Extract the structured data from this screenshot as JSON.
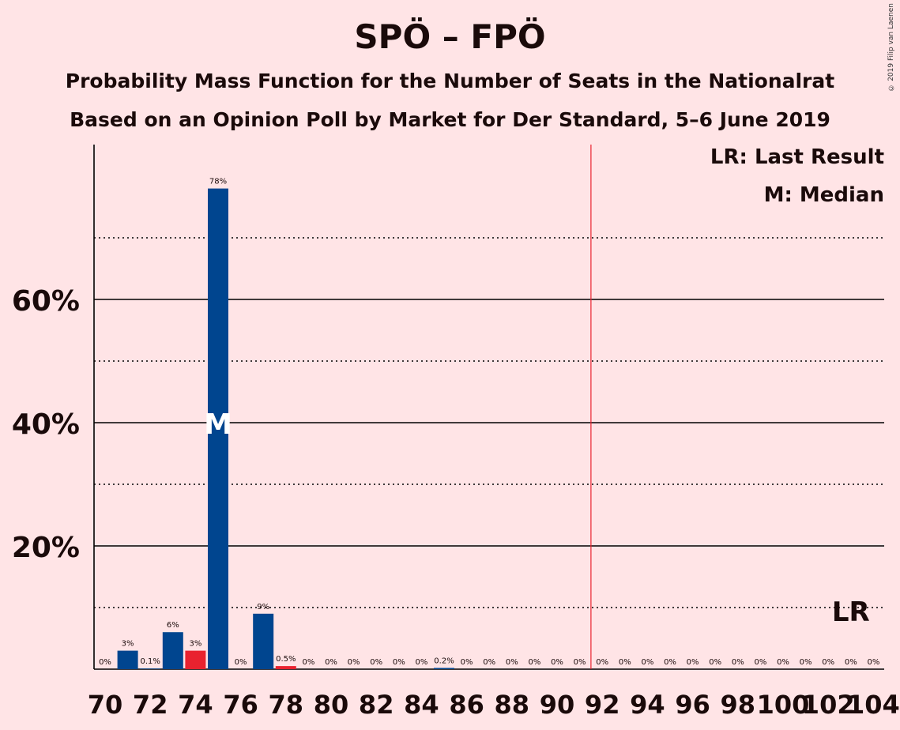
{
  "title": "SPÖ – FPÖ",
  "subtitle1": "Probability Mass Function for the Number of Seats in the Nationalrat",
  "subtitle2": "Based on an Opinion Poll by Market for Der Standard, 5–6 June 2019",
  "copyright": "© 2019 Filip van Laenen",
  "legend": {
    "last_result": "LR: Last Result",
    "median": "M: Median"
  },
  "markers": {
    "median_label": "M",
    "last_result_label": "LR"
  },
  "colors": {
    "bar": "#00458f",
    "bar_highlight": "#e9222f",
    "majority_line": "#e9222f",
    "background": "#ffe4e6"
  },
  "chart_data": {
    "type": "bar",
    "x": [
      70,
      71,
      72,
      73,
      74,
      75,
      76,
      77,
      78,
      79,
      80,
      81,
      82,
      83,
      84,
      85,
      86,
      87,
      88,
      89,
      90,
      91,
      92,
      93,
      94,
      95,
      96,
      97,
      98,
      99,
      100,
      101,
      102,
      103,
      104
    ],
    "values": [
      0,
      3,
      0.1,
      6,
      3,
      78,
      0,
      9,
      0.5,
      0,
      0,
      0,
      0,
      0,
      0,
      0.2,
      0,
      0,
      0,
      0,
      0,
      0,
      0,
      0,
      0,
      0,
      0,
      0,
      0,
      0,
      0,
      0,
      0,
      0,
      0
    ],
    "value_labels": [
      "0%",
      "3%",
      "0.1%",
      "6%",
      "3%",
      "78%",
      "0%",
      "9%",
      "0.5%",
      "0%",
      "0%",
      "0%",
      "0%",
      "0%",
      "0%",
      "0.2%",
      "0%",
      "0%",
      "0%",
      "0%",
      "0%",
      "0%",
      "0%",
      "0%",
      "0%",
      "0%",
      "0%",
      "0%",
      "0%",
      "0%",
      "0%",
      "0%",
      "0%",
      "0%",
      "0%"
    ],
    "highlight": [
      74,
      78
    ],
    "median": 75,
    "last_result": 103,
    "majority": 92,
    "xticks": [
      "70",
      "72",
      "74",
      "76",
      "78",
      "80",
      "82",
      "84",
      "86",
      "88",
      "90",
      "92",
      "94",
      "96",
      "98",
      "100",
      "102",
      "104"
    ],
    "yticks": [
      "20%",
      "40%",
      "60%"
    ],
    "ylim": [
      0,
      85
    ],
    "grid": "solid lines at 20%, 40%, 60%; dotted lines at 10%, 30%, 50%, 70%"
  }
}
